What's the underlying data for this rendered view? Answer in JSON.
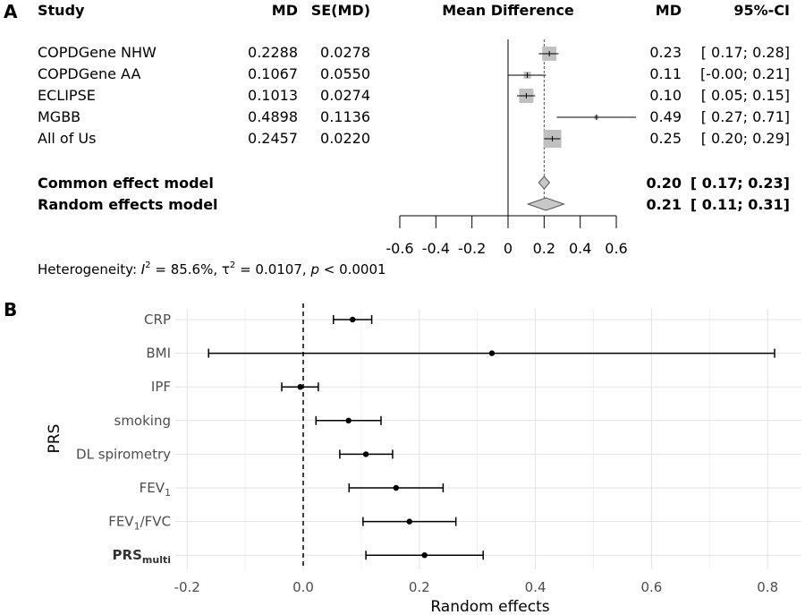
{
  "panel_a": {
    "panel_label": "A",
    "headers": {
      "study": "Study",
      "md": "MD",
      "se": "SE(MD)",
      "plot": "Mean Difference",
      "md2": "MD",
      "ci": "95%-CI"
    },
    "rows": [
      {
        "study": "COPDGene NHW",
        "md": "0.2288",
        "se": "0.0278",
        "md_r": "0.23",
        "ci": "[ 0.17; 0.28]"
      },
      {
        "study": "COPDGene AA",
        "md": "0.1067",
        "se": "0.0550",
        "md_r": "0.11",
        "ci": "[-0.00; 0.21]"
      },
      {
        "study": "ECLIPSE",
        "md": "0.1013",
        "se": "0.0274",
        "md_r": "0.10",
        "ci": "[ 0.05; 0.15]"
      },
      {
        "study": "MGBB",
        "md": "0.4898",
        "se": "0.1136",
        "md_r": "0.49",
        "ci": "[ 0.27; 0.71]"
      },
      {
        "study": "All of Us",
        "md": "0.2457",
        "se": "0.0220",
        "md_r": "0.25",
        "ci": "[ 0.20; 0.29]"
      }
    ],
    "models": [
      {
        "label": "Common effect model",
        "md_r": "0.20",
        "ci": "[ 0.17; 0.23]"
      },
      {
        "label": "Random effects model",
        "md_r": "0.21",
        "ci": "[ 0.11; 0.31]"
      }
    ],
    "heterogeneity": {
      "prefix": "Heterogeneity: ",
      "i2_sym": "I",
      "i2_value": " = 85.6%, ",
      "tau_sym": "τ",
      "tau_value": " = 0.0107, ",
      "p_sym": "p",
      "p_value": " < 0.0001",
      "sup": "2"
    }
  },
  "panel_b": {
    "panel_label": "B"
  },
  "chart_data": [
    {
      "type": "forest",
      "title": "Mean Difference",
      "studies": [
        {
          "name": "COPDGene NHW",
          "md": 0.2288,
          "lower": 0.17,
          "upper": 0.28,
          "se": 0.0278
        },
        {
          "name": "COPDGene AA",
          "md": 0.1067,
          "lower": -0.0,
          "upper": 0.21,
          "se": 0.055
        },
        {
          "name": "ECLIPSE",
          "md": 0.1013,
          "lower": 0.05,
          "upper": 0.15,
          "se": 0.0274
        },
        {
          "name": "MGBB",
          "md": 0.4898,
          "lower": 0.27,
          "upper": 0.71,
          "se": 0.1136
        },
        {
          "name": "All of Us",
          "md": 0.2457,
          "lower": 0.2,
          "upper": 0.29,
          "se": 0.022
        }
      ],
      "pooled": [
        {
          "name": "Common effect model",
          "md": 0.2,
          "lower": 0.17,
          "upper": 0.23
        },
        {
          "name": "Random effects model",
          "md": 0.21,
          "lower": 0.11,
          "upper": 0.31
        }
      ],
      "xticks": [
        -0.6,
        -0.4,
        -0.2,
        0,
        0.2,
        0.4,
        0.6
      ],
      "xtick_labels": [
        "-0.6",
        "-0.4",
        "-0.2",
        "0",
        "0.2",
        "0.4",
        "0.6"
      ],
      "xlim": [
        -0.6,
        0.6
      ],
      "null_line": 0,
      "ref_line": 0.2
    },
    {
      "type": "scatter",
      "subtype": "point-range",
      "xlabel": "Random effects",
      "ylabel": "PRS",
      "xlim": [
        -0.2,
        0.8
      ],
      "xticks": [
        -0.2,
        0.0,
        0.2,
        0.4,
        0.6,
        0.8
      ],
      "xtick_labels": [
        "-0.2",
        "0.0",
        "0.2",
        "0.4",
        "0.6",
        "0.8"
      ],
      "grid": true,
      "ref_line": 0,
      "points": [
        {
          "label": "CRP",
          "sub": "",
          "tail": "",
          "bold": false,
          "x": 0.085,
          "lower": 0.052,
          "upper": 0.118
        },
        {
          "label": "BMI",
          "sub": "",
          "tail": "",
          "bold": false,
          "x": 0.325,
          "lower": -0.163,
          "upper": 0.812
        },
        {
          "label": "IPF",
          "sub": "",
          "tail": "",
          "bold": false,
          "x": -0.005,
          "lower": -0.037,
          "upper": 0.026
        },
        {
          "label": "smoking",
          "sub": "",
          "tail": "",
          "bold": false,
          "x": 0.078,
          "lower": 0.022,
          "upper": 0.134
        },
        {
          "label": "DL spirometry",
          "sub": "",
          "tail": "",
          "bold": false,
          "x": 0.108,
          "lower": 0.063,
          "upper": 0.154
        },
        {
          "label": "FEV",
          "sub": "1",
          "tail": "",
          "bold": false,
          "x": 0.16,
          "lower": 0.079,
          "upper": 0.241
        },
        {
          "label": "FEV",
          "sub": "1",
          "tail": "/FVC",
          "bold": false,
          "x": 0.183,
          "lower": 0.103,
          "upper": 0.263
        },
        {
          "label": "PRS",
          "sub": "multi",
          "tail": "",
          "bold": true,
          "x": 0.209,
          "lower": 0.108,
          "upper": 0.31
        }
      ]
    }
  ]
}
